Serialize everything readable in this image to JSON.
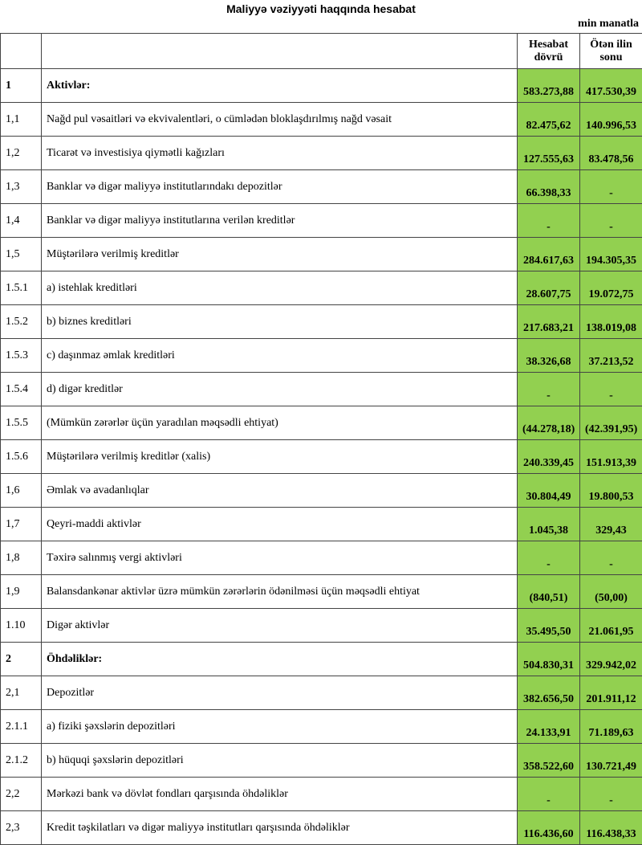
{
  "title": "Maliyyə vəziyyəti haqqında hesabat",
  "unit": "min manatla",
  "colors": {
    "highlight": "#92d050"
  },
  "columns": [
    "",
    "",
    "Hesabat dövrü",
    "Ötən ilin sonu"
  ],
  "rows": [
    {
      "no": "1",
      "label": "Aktivlər:",
      "current": "583.273,88",
      "prior": "417.530,39",
      "bold": true
    },
    {
      "no": "1,1",
      "label": "Nağd pul vəsaitləri və  ekvivalentləri, o cümlədən bloklaşdırılmış nağd vəsait",
      "current": "82.475,62",
      "prior": "140.996,53"
    },
    {
      "no": "1,2",
      "label": "Ticarət və investisiya qiymətli kağızları",
      "current": "127.555,63",
      "prior": "83.478,56"
    },
    {
      "no": "1,3",
      "label": "Banklar və digər maliyyə institutlarındakı depozitlər",
      "current": "66.398,33",
      "prior": "-"
    },
    {
      "no": "1,4",
      "label": "Banklar və digər maliyyə institutlarına verilən kreditlər",
      "current": "-",
      "prior": "-"
    },
    {
      "no": "1,5",
      "label": "Müştərilərə verilmiş kreditlər",
      "current": "284.617,63",
      "prior": "194.305,35"
    },
    {
      "no": "1.5.1",
      "label": "a) istehlak kreditləri",
      "current": "28.607,75",
      "prior": "19.072,75"
    },
    {
      "no": "1.5.2",
      "label": "b) biznes kreditləri",
      "current": "217.683,21",
      "prior": "138.019,08"
    },
    {
      "no": "1.5.3",
      "label": "c) daşınmaz əmlak kreditləri",
      "current": "38.326,68",
      "prior": "37.213,52"
    },
    {
      "no": "1.5.4",
      "label": "d) digər kreditlər",
      "current": "-",
      "prior": "-"
    },
    {
      "no": "1.5.5",
      "label": "(Mümkün zərərlər üçün yaradılan məqsədli ehtiyat)",
      "current": "(44.278,18)",
      "prior": "(42.391,95)"
    },
    {
      "no": "1.5.6",
      "label": "Müştərilərə verilmiş kreditlər (xalis)",
      "current": "240.339,45",
      "prior": "151.913,39"
    },
    {
      "no": "1,6",
      "label": "Əmlak və avadanlıqlar",
      "current": "30.804,49",
      "prior": "19.800,53"
    },
    {
      "no": "1,7",
      "label": "Qeyri-maddi aktivlər",
      "current": "1.045,38",
      "prior": "329,43"
    },
    {
      "no": "1,8",
      "label": "Təxirə salınmış vergi aktivləri",
      "current": "-",
      "prior": "-"
    },
    {
      "no": "1,9",
      "label": "Balansdankənar aktivlər üzrə mümkün zərərlərin ödənilməsi üçün məqsədli ehtiyat",
      "current": "(840,51)",
      "prior": "(50,00)"
    },
    {
      "no": "1.10",
      "label": "Digər aktivlər",
      "current": "35.495,50",
      "prior": "21.061,95"
    },
    {
      "no": "2",
      "label": "Öhdəliklər:",
      "current": "504.830,31",
      "prior": "329.942,02",
      "bold": true
    },
    {
      "no": "2,1",
      "label": "Depozitlər",
      "current": "382.656,50",
      "prior": "201.911,12"
    },
    {
      "no": "2.1.1",
      "label": "a) fiziki şəxslərin depozitləri",
      "current": "24.133,91",
      "prior": "71.189,63"
    },
    {
      "no": "2.1.2",
      "label": "b) hüquqi şəxslərin depozitləri",
      "current": "358.522,60",
      "prior": "130.721,49"
    },
    {
      "no": "2,2",
      "label": "Mərkəzi bank və dövlət fondları qarşısında öhdəliklər",
      "current": "-",
      "prior": "-"
    },
    {
      "no": "2,3",
      "label": "Kredit təşkilatları və digər maliyyə institutları qarşısında öhdəliklər",
      "current": "116.436,60",
      "prior": "116.438,33"
    }
  ]
}
